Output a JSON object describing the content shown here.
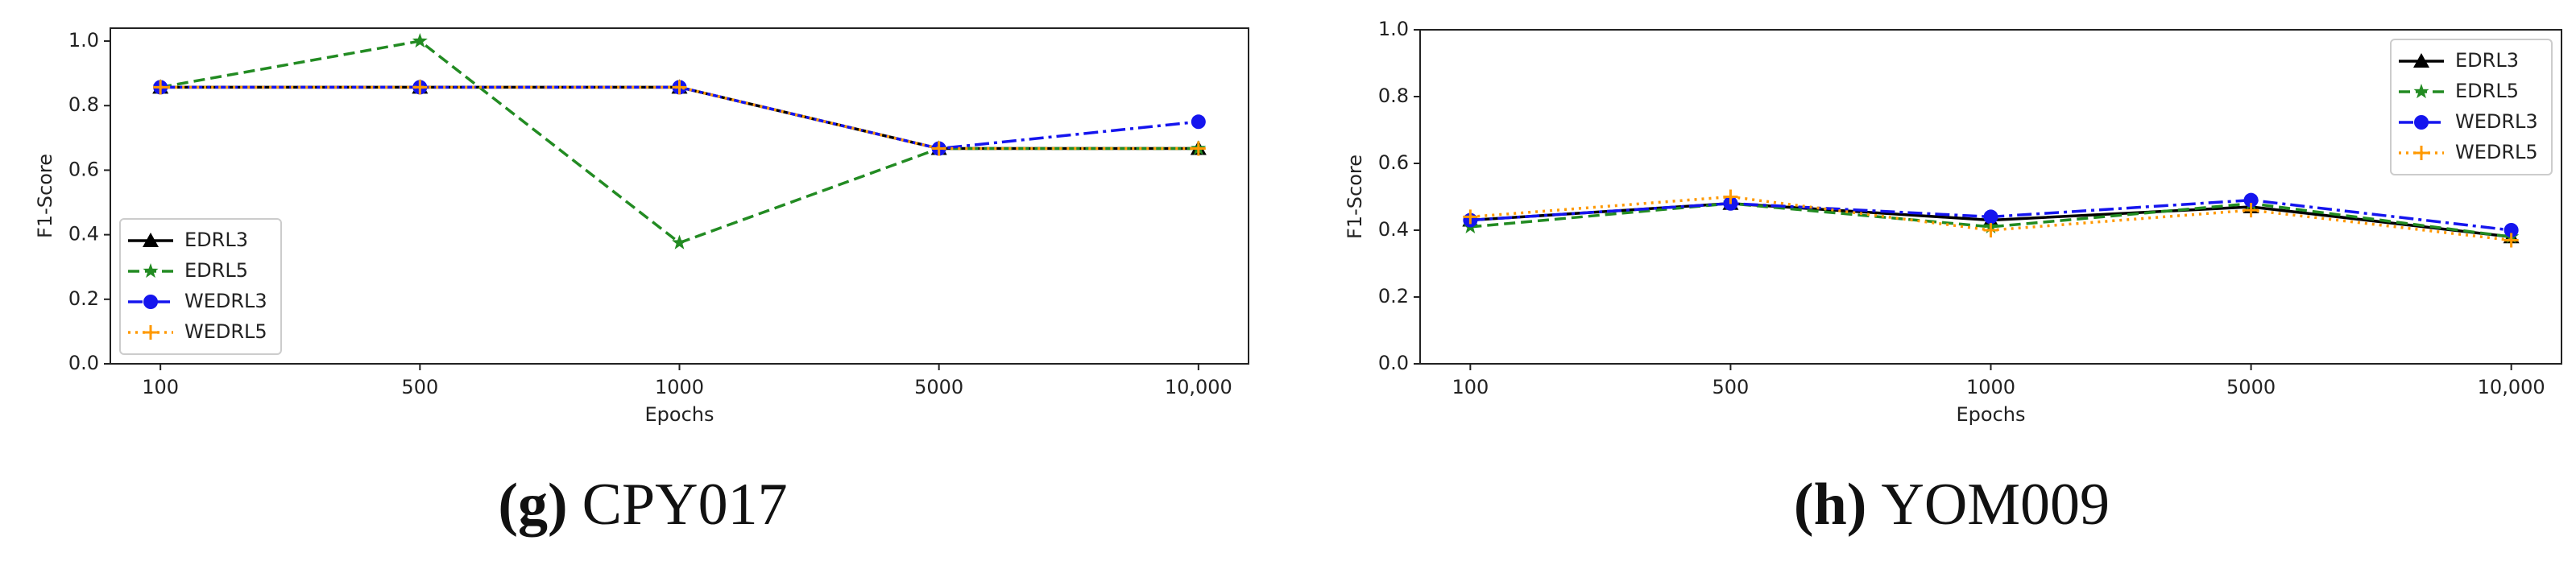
{
  "chart_data": [
    {
      "type": "line",
      "caption_label": "(g)",
      "caption": "CPY017",
      "xlabel": "Epochs",
      "ylabel": "F1-Score",
      "categories": [
        "100",
        "500",
        "1000",
        "5000",
        "10,000"
      ],
      "ylim": [
        0,
        1.04
      ],
      "yticks": [
        {
          "value": 0,
          "label": "0.0"
        },
        0.2,
        0.4,
        0.6,
        0.8,
        {
          "value": 1,
          "label": "1.0"
        }
      ],
      "legend": "lower left",
      "series": [
        {
          "name": "EDRL3",
          "color": "#000000",
          "marker": "triangle",
          "linestyle": "solid",
          "values": [
            0.857,
            0.857,
            0.857,
            0.667,
            0.667
          ]
        },
        {
          "name": "EDRL5",
          "color": "#228b22",
          "marker": "star",
          "linestyle": "dashed",
          "values": [
            0.857,
            1.0,
            0.375,
            0.667,
            0.667
          ]
        },
        {
          "name": "WEDRL3",
          "color": "#1515ee",
          "marker": "circle",
          "linestyle": "dashdot",
          "values": [
            0.857,
            0.857,
            0.857,
            0.667,
            0.75
          ]
        },
        {
          "name": "WEDRL5",
          "color": "#ff9900",
          "marker": "plus",
          "linestyle": "dotted",
          "values": [
            0.857,
            0.857,
            0.857,
            0.667,
            0.667
          ]
        }
      ]
    },
    {
      "type": "line",
      "caption_label": "(h)",
      "caption": "YOM009",
      "xlabel": "Epochs",
      "ylabel": "F1-Score",
      "categories": [
        "100",
        "500",
        "1000",
        "5000",
        "10,000"
      ],
      "ylim": [
        0,
        1.0
      ],
      "yticks": [
        {
          "value": 0,
          "label": "0.0"
        },
        0.2,
        0.4,
        0.6,
        0.8,
        {
          "value": 1,
          "label": "1.0"
        }
      ],
      "legend": "upper right",
      "series": [
        {
          "name": "EDRL3",
          "color": "#000000",
          "marker": "triangle",
          "linestyle": "solid",
          "values": [
            0.43,
            0.48,
            0.43,
            0.47,
            0.38
          ]
        },
        {
          "name": "EDRL5",
          "color": "#228b22",
          "marker": "star",
          "linestyle": "dashed",
          "values": [
            0.41,
            0.48,
            0.41,
            0.48,
            0.38
          ]
        },
        {
          "name": "WEDRL3",
          "color": "#1515ee",
          "marker": "circle",
          "linestyle": "dashdot",
          "values": [
            0.43,
            0.48,
            0.44,
            0.49,
            0.4
          ]
        },
        {
          "name": "WEDRL5",
          "color": "#ff9900",
          "marker": "plus",
          "linestyle": "dotted",
          "values": [
            0.44,
            0.5,
            0.4,
            0.46,
            0.37
          ]
        }
      ]
    }
  ]
}
